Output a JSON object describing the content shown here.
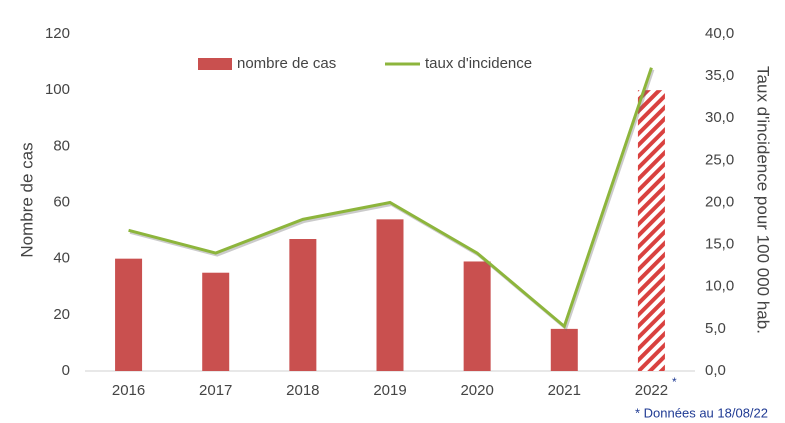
{
  "chart_data": {
    "type": "bar",
    "categories": [
      "2016",
      "2017",
      "2018",
      "2019",
      "2020",
      "2021",
      "2022"
    ],
    "series": [
      {
        "name": "nombre de cas",
        "type": "bar",
        "color": "#c9504f",
        "values": [
          40,
          35,
          47,
          54,
          39,
          15,
          100
        ],
        "pattern": [
          "solid",
          "solid",
          "solid",
          "solid",
          "solid",
          "solid",
          "hatched"
        ]
      },
      {
        "name": "taux d'incidence",
        "type": "line",
        "axis": "y2",
        "color": "#8db53c",
        "values": [
          16.7,
          14.0,
          18.0,
          20.0,
          14.0,
          5.3,
          36.0
        ]
      }
    ],
    "ylabel": "Nombre de cas",
    "y2label": "Taux d'incidence pour 100 000 hab.",
    "ylim": [
      0,
      120
    ],
    "yticks": [
      0,
      20,
      40,
      60,
      80,
      100,
      120
    ],
    "y2lim": [
      0,
      40
    ],
    "y2ticks": [
      {
        "value": 0,
        "label": "0,0"
      },
      {
        "value": 5,
        "label": "5,0"
      },
      {
        "value": 10,
        "label": "10,0"
      },
      {
        "value": 15,
        "label": "15,0"
      },
      {
        "value": 20,
        "label": "20,0"
      },
      {
        "value": 25,
        "label": "25,0"
      },
      {
        "value": 30,
        "label": "30,0"
      },
      {
        "value": 35,
        "label": "35,0"
      },
      {
        "value": 40,
        "label": "40,0"
      }
    ],
    "annotations": [
      "*",
      "* Données au 18/08/22"
    ],
    "grid": false,
    "legend": "top"
  }
}
